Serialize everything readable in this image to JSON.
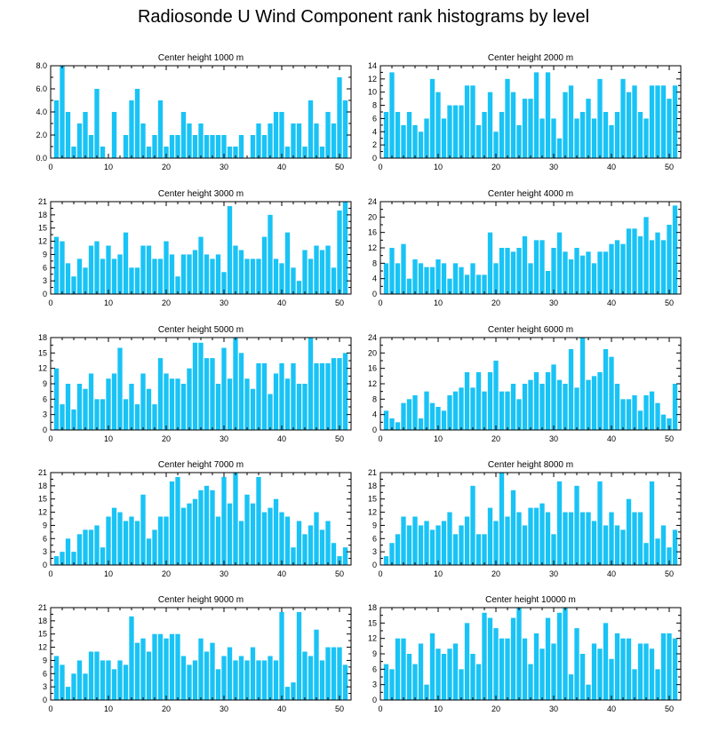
{
  "title": "Radiosonde U Wind Component rank histograms by level",
  "bar_color": "#19c3f5",
  "chart_data": [
    {
      "type": "bar",
      "title": "Center height 1000 m",
      "xlim": [
        0,
        52
      ],
      "x_ticks": [
        0,
        10,
        20,
        30,
        40,
        50
      ],
      "ylim": [
        0,
        8
      ],
      "y_ticks": [
        0,
        2,
        4,
        6,
        8
      ],
      "y_tick_labels": [
        "0.0",
        "2.0",
        "4.0",
        "6.0",
        "8.0"
      ],
      "values": [
        5,
        8,
        4,
        1,
        3,
        4,
        2,
        6,
        1,
        0,
        4,
        0,
        2,
        5,
        6,
        3,
        1,
        2,
        5,
        1,
        2,
        2,
        4,
        3,
        2,
        3,
        2,
        2,
        2,
        2,
        1,
        1,
        2,
        0,
        2,
        3,
        2,
        3,
        4,
        4,
        1,
        3,
        3,
        1,
        5,
        3,
        1,
        4,
        3,
        7,
        5
      ]
    },
    {
      "type": "bar",
      "title": "Center height 2000 m",
      "xlim": [
        0,
        52
      ],
      "x_ticks": [
        0,
        10,
        20,
        30,
        40,
        50
      ],
      "ylim": [
        0,
        14
      ],
      "y_ticks": [
        0,
        2,
        4,
        6,
        8,
        10,
        12,
        14
      ],
      "values": [
        7,
        13,
        7,
        5,
        7,
        5,
        4,
        6,
        12,
        10,
        6,
        8,
        8,
        8,
        11,
        11,
        5,
        7,
        10,
        4,
        7,
        12,
        10,
        5,
        9,
        9,
        13,
        6,
        13,
        6,
        3,
        10,
        11,
        6,
        7,
        9,
        6,
        12,
        7,
        5,
        7,
        12,
        10,
        11,
        7,
        6,
        11,
        11,
        11,
        9,
        11
      ]
    },
    {
      "type": "bar",
      "title": "Center height 3000 m",
      "xlim": [
        0,
        52
      ],
      "x_ticks": [
        0,
        10,
        20,
        30,
        40,
        50
      ],
      "ylim": [
        0,
        21
      ],
      "y_ticks": [
        0,
        3,
        6,
        9,
        12,
        15,
        18,
        21
      ],
      "values": [
        13,
        12,
        7,
        4,
        8,
        6,
        11,
        12,
        8,
        11,
        8,
        9,
        14,
        6,
        6,
        11,
        11,
        8,
        8,
        12,
        9,
        4,
        9,
        9,
        10,
        13,
        9,
        8,
        9,
        5,
        20,
        11,
        10,
        8,
        8,
        8,
        13,
        18,
        8,
        7,
        14,
        6,
        3,
        10,
        8,
        11,
        10,
        11,
        6,
        19,
        21
      ]
    },
    {
      "type": "bar",
      "title": "Center height 4000 m",
      "xlim": [
        0,
        52
      ],
      "x_ticks": [
        0,
        10,
        20,
        30,
        40,
        50
      ],
      "ylim": [
        0,
        24
      ],
      "y_ticks": [
        0,
        4,
        8,
        12,
        16,
        20,
        24
      ],
      "values": [
        8,
        12,
        8,
        13,
        4,
        9,
        8,
        7,
        7,
        9,
        8,
        4,
        8,
        7,
        5,
        8,
        5,
        5,
        16,
        8,
        12,
        12,
        11,
        12,
        15,
        8,
        14,
        14,
        6,
        12,
        16,
        11,
        9,
        12,
        10,
        11,
        8,
        11,
        11,
        13,
        14,
        13,
        17,
        17,
        15,
        20,
        14,
        16,
        14,
        18,
        23
      ]
    },
    {
      "type": "bar",
      "title": "Center height 5000 m",
      "xlim": [
        0,
        52
      ],
      "x_ticks": [
        0,
        10,
        20,
        30,
        40,
        50
      ],
      "ylim": [
        0,
        18
      ],
      "y_ticks": [
        0,
        3,
        6,
        9,
        12,
        15,
        18
      ],
      "values": [
        12,
        5,
        9,
        4,
        9,
        8,
        11,
        6,
        6,
        10,
        11,
        16,
        6,
        9,
        5,
        11,
        8,
        5,
        14,
        11,
        10,
        10,
        9,
        12,
        17,
        17,
        14,
        14,
        9,
        16,
        10,
        18,
        15,
        10,
        8,
        13,
        13,
        7,
        11,
        13,
        10,
        13,
        9,
        9,
        18,
        13,
        13,
        13,
        14,
        14,
        15
      ]
    },
    {
      "type": "bar",
      "title": "Center height 6000 m",
      "xlim": [
        0,
        52
      ],
      "x_ticks": [
        0,
        10,
        20,
        30,
        40,
        50
      ],
      "ylim": [
        0,
        24
      ],
      "y_ticks": [
        0,
        4,
        8,
        12,
        16,
        20,
        24
      ],
      "values": [
        5,
        3,
        2,
        7,
        8,
        9,
        3,
        10,
        7,
        6,
        5,
        9,
        10,
        11,
        15,
        11,
        15,
        10,
        15,
        18,
        10,
        10,
        12,
        8,
        12,
        13,
        15,
        12,
        15,
        17,
        13,
        12,
        21,
        11,
        24,
        13,
        14,
        15,
        21,
        19,
        12,
        8,
        8,
        9,
        5,
        9,
        10,
        7,
        4,
        3,
        12
      ]
    },
    {
      "type": "bar",
      "title": "Center height 7000 m",
      "xlim": [
        0,
        52
      ],
      "x_ticks": [
        0,
        10,
        20,
        30,
        40,
        50
      ],
      "ylim": [
        0,
        21
      ],
      "y_ticks": [
        0,
        3,
        6,
        9,
        12,
        15,
        18,
        21
      ],
      "values": [
        2,
        3,
        6,
        3,
        7,
        8,
        8,
        9,
        4,
        11,
        13,
        12,
        10,
        11,
        10,
        16,
        6,
        8,
        11,
        11,
        19,
        20,
        13,
        14,
        15,
        17,
        18,
        17,
        11,
        20,
        14,
        21,
        10,
        16,
        14,
        20,
        12,
        13,
        15,
        12,
        11,
        4,
        10,
        7,
        9,
        12,
        8,
        10,
        5,
        2,
        4
      ]
    },
    {
      "type": "bar",
      "title": "Center height 8000 m",
      "xlim": [
        0,
        52
      ],
      "x_ticks": [
        0,
        10,
        20,
        30,
        40,
        50
      ],
      "ylim": [
        0,
        21
      ],
      "y_ticks": [
        0,
        3,
        6,
        9,
        12,
        15,
        18,
        21
      ],
      "values": [
        2,
        5,
        7,
        11,
        9,
        11,
        9,
        10,
        8,
        9,
        10,
        12,
        7,
        9,
        11,
        18,
        7,
        7,
        13,
        10,
        21,
        11,
        17,
        12,
        9,
        13,
        13,
        14,
        12,
        7,
        19,
        12,
        12,
        18,
        12,
        12,
        10,
        19,
        9,
        12,
        9,
        8,
        15,
        12,
        12,
        5,
        19,
        6,
        9,
        4,
        8
      ]
    },
    {
      "type": "bar",
      "title": "Center height 9000 m",
      "xlim": [
        0,
        52
      ],
      "x_ticks": [
        0,
        10,
        20,
        30,
        40,
        50
      ],
      "ylim": [
        0,
        21
      ],
      "y_ticks": [
        0,
        3,
        6,
        9,
        12,
        15,
        18,
        21
      ],
      "values": [
        10,
        8,
        3,
        6,
        9,
        6,
        11,
        11,
        9,
        9,
        7,
        9,
        8,
        19,
        13,
        14,
        11,
        15,
        15,
        14,
        15,
        15,
        10,
        8,
        9,
        14,
        11,
        13,
        7,
        10,
        12,
        9,
        10,
        9,
        12,
        9,
        9,
        10,
        9,
        20,
        3,
        4,
        20,
        11,
        10,
        16,
        9,
        12,
        12,
        12,
        8
      ]
    },
    {
      "type": "bar",
      "title": "Center height 10000 m",
      "xlim": [
        0,
        52
      ],
      "x_ticks": [
        0,
        10,
        20,
        30,
        40,
        50
      ],
      "ylim": [
        0,
        18
      ],
      "y_ticks": [
        0,
        3,
        6,
        9,
        12,
        15,
        18
      ],
      "values": [
        7,
        6,
        12,
        12,
        9,
        7,
        11,
        3,
        13,
        10,
        9,
        10,
        11,
        6,
        15,
        9,
        7,
        17,
        16,
        14,
        12,
        12,
        16,
        18,
        12,
        7,
        13,
        10,
        16,
        11,
        17,
        18,
        5,
        14,
        9,
        3,
        11,
        10,
        15,
        8,
        13,
        12,
        12,
        6,
        11,
        11,
        10,
        6,
        13,
        13,
        12
      ]
    }
  ]
}
